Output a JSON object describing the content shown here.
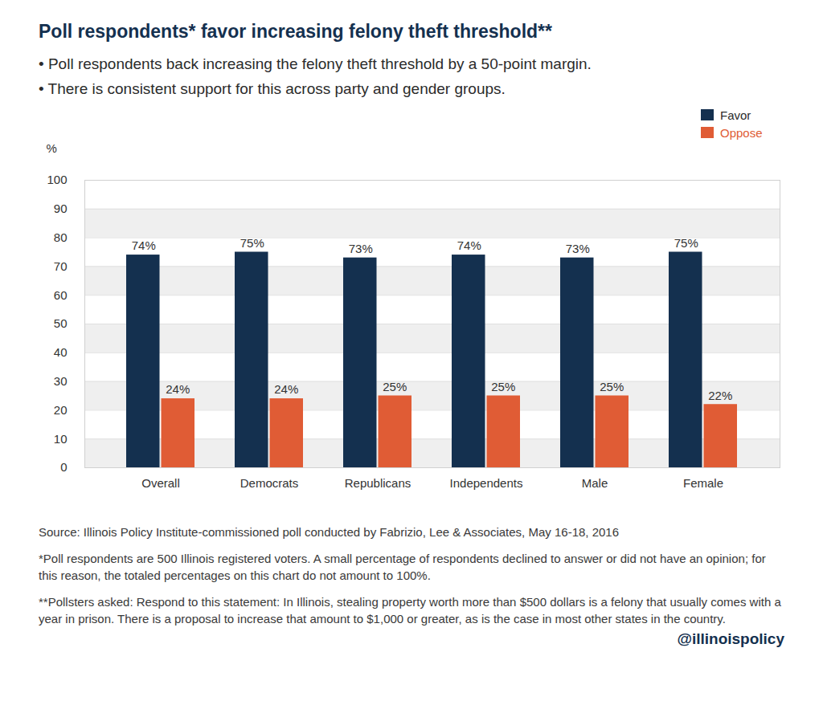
{
  "chart_data": {
    "type": "bar",
    "title": "Poll respondents* favor increasing felony theft threshold**",
    "subtitle": [
      "• Poll respondents back increasing the felony theft threshold by a 50-point margin.",
      "• There is consistent support for this across party and gender groups."
    ],
    "ylabel": "%",
    "categories": [
      "Overall",
      "Democrats",
      "Republicans",
      "Independents",
      "Male",
      "Female"
    ],
    "series": [
      {
        "name": "Favor",
        "color": "#14304f",
        "values": [
          74,
          75,
          73,
          74,
          73,
          75
        ],
        "value_labels": [
          "74%",
          "75%",
          "73%",
          "74%",
          "73%",
          "75%"
        ]
      },
      {
        "name": "Oppose",
        "color": "#e05c35",
        "values": [
          24,
          24,
          25,
          25,
          25,
          22
        ],
        "value_labels": [
          "24%",
          "24%",
          "25%",
          "25%",
          "25%",
          "22%"
        ]
      }
    ],
    "ylim": [
      0,
      100
    ],
    "yticks": [
      0,
      10,
      20,
      30,
      40,
      50,
      60,
      70,
      80,
      90,
      100
    ],
    "grid": true,
    "legend": "top-right",
    "data_labels": true,
    "notes": [
      "Source: Illinois Policy Institute-commissioned poll conducted by Fabrizio, Lee & Associates, May 16-18, 2016",
      "*Poll respondents are 500 Illinois registered voters. A small percentage of respondents declined to answer or did not have an opinion; for this reason, the totaled percentages on this chart do not amount to 100%.",
      "**Pollsters asked: Respond to this statement: In Illinois, stealing property worth more than $500 dollars is a felony that usually comes with a year in prison. There is a proposal to increase that amount to $1,000 or greater, as is the case in most other states in the country."
    ],
    "credit": "@illinoispolicy"
  }
}
